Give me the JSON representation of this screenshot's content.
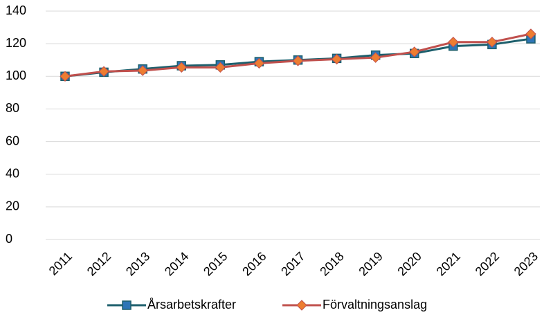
{
  "chart_data": {
    "type": "line",
    "categories": [
      "2011",
      "2012",
      "2013",
      "2014",
      "2015",
      "2016",
      "2017",
      "2018",
      "2019",
      "2020",
      "2021",
      "2022",
      "2023"
    ],
    "series": [
      {
        "name": "Årsarbetskrafter",
        "color": "#1d5f6c",
        "marker": "square",
        "marker_color": "#2e75b6",
        "values": [
          100,
          102.5,
          104.5,
          106.5,
          107,
          109,
          110,
          111,
          113,
          114,
          118.5,
          119.5,
          123
        ]
      },
      {
        "name": "Förvaltningsanslag",
        "color": "#c0504d",
        "marker": "diamond",
        "marker_color": "#ed7d31",
        "values": [
          100,
          103,
          103.5,
          105.5,
          105.5,
          108,
          109.5,
          110.5,
          111.5,
          115,
          121,
          121,
          126
        ]
      }
    ],
    "ylim": [
      0,
      140
    ],
    "yticks": [
      0,
      20,
      40,
      60,
      80,
      100,
      120,
      140
    ],
    "grid": true,
    "legend": "bottom"
  }
}
